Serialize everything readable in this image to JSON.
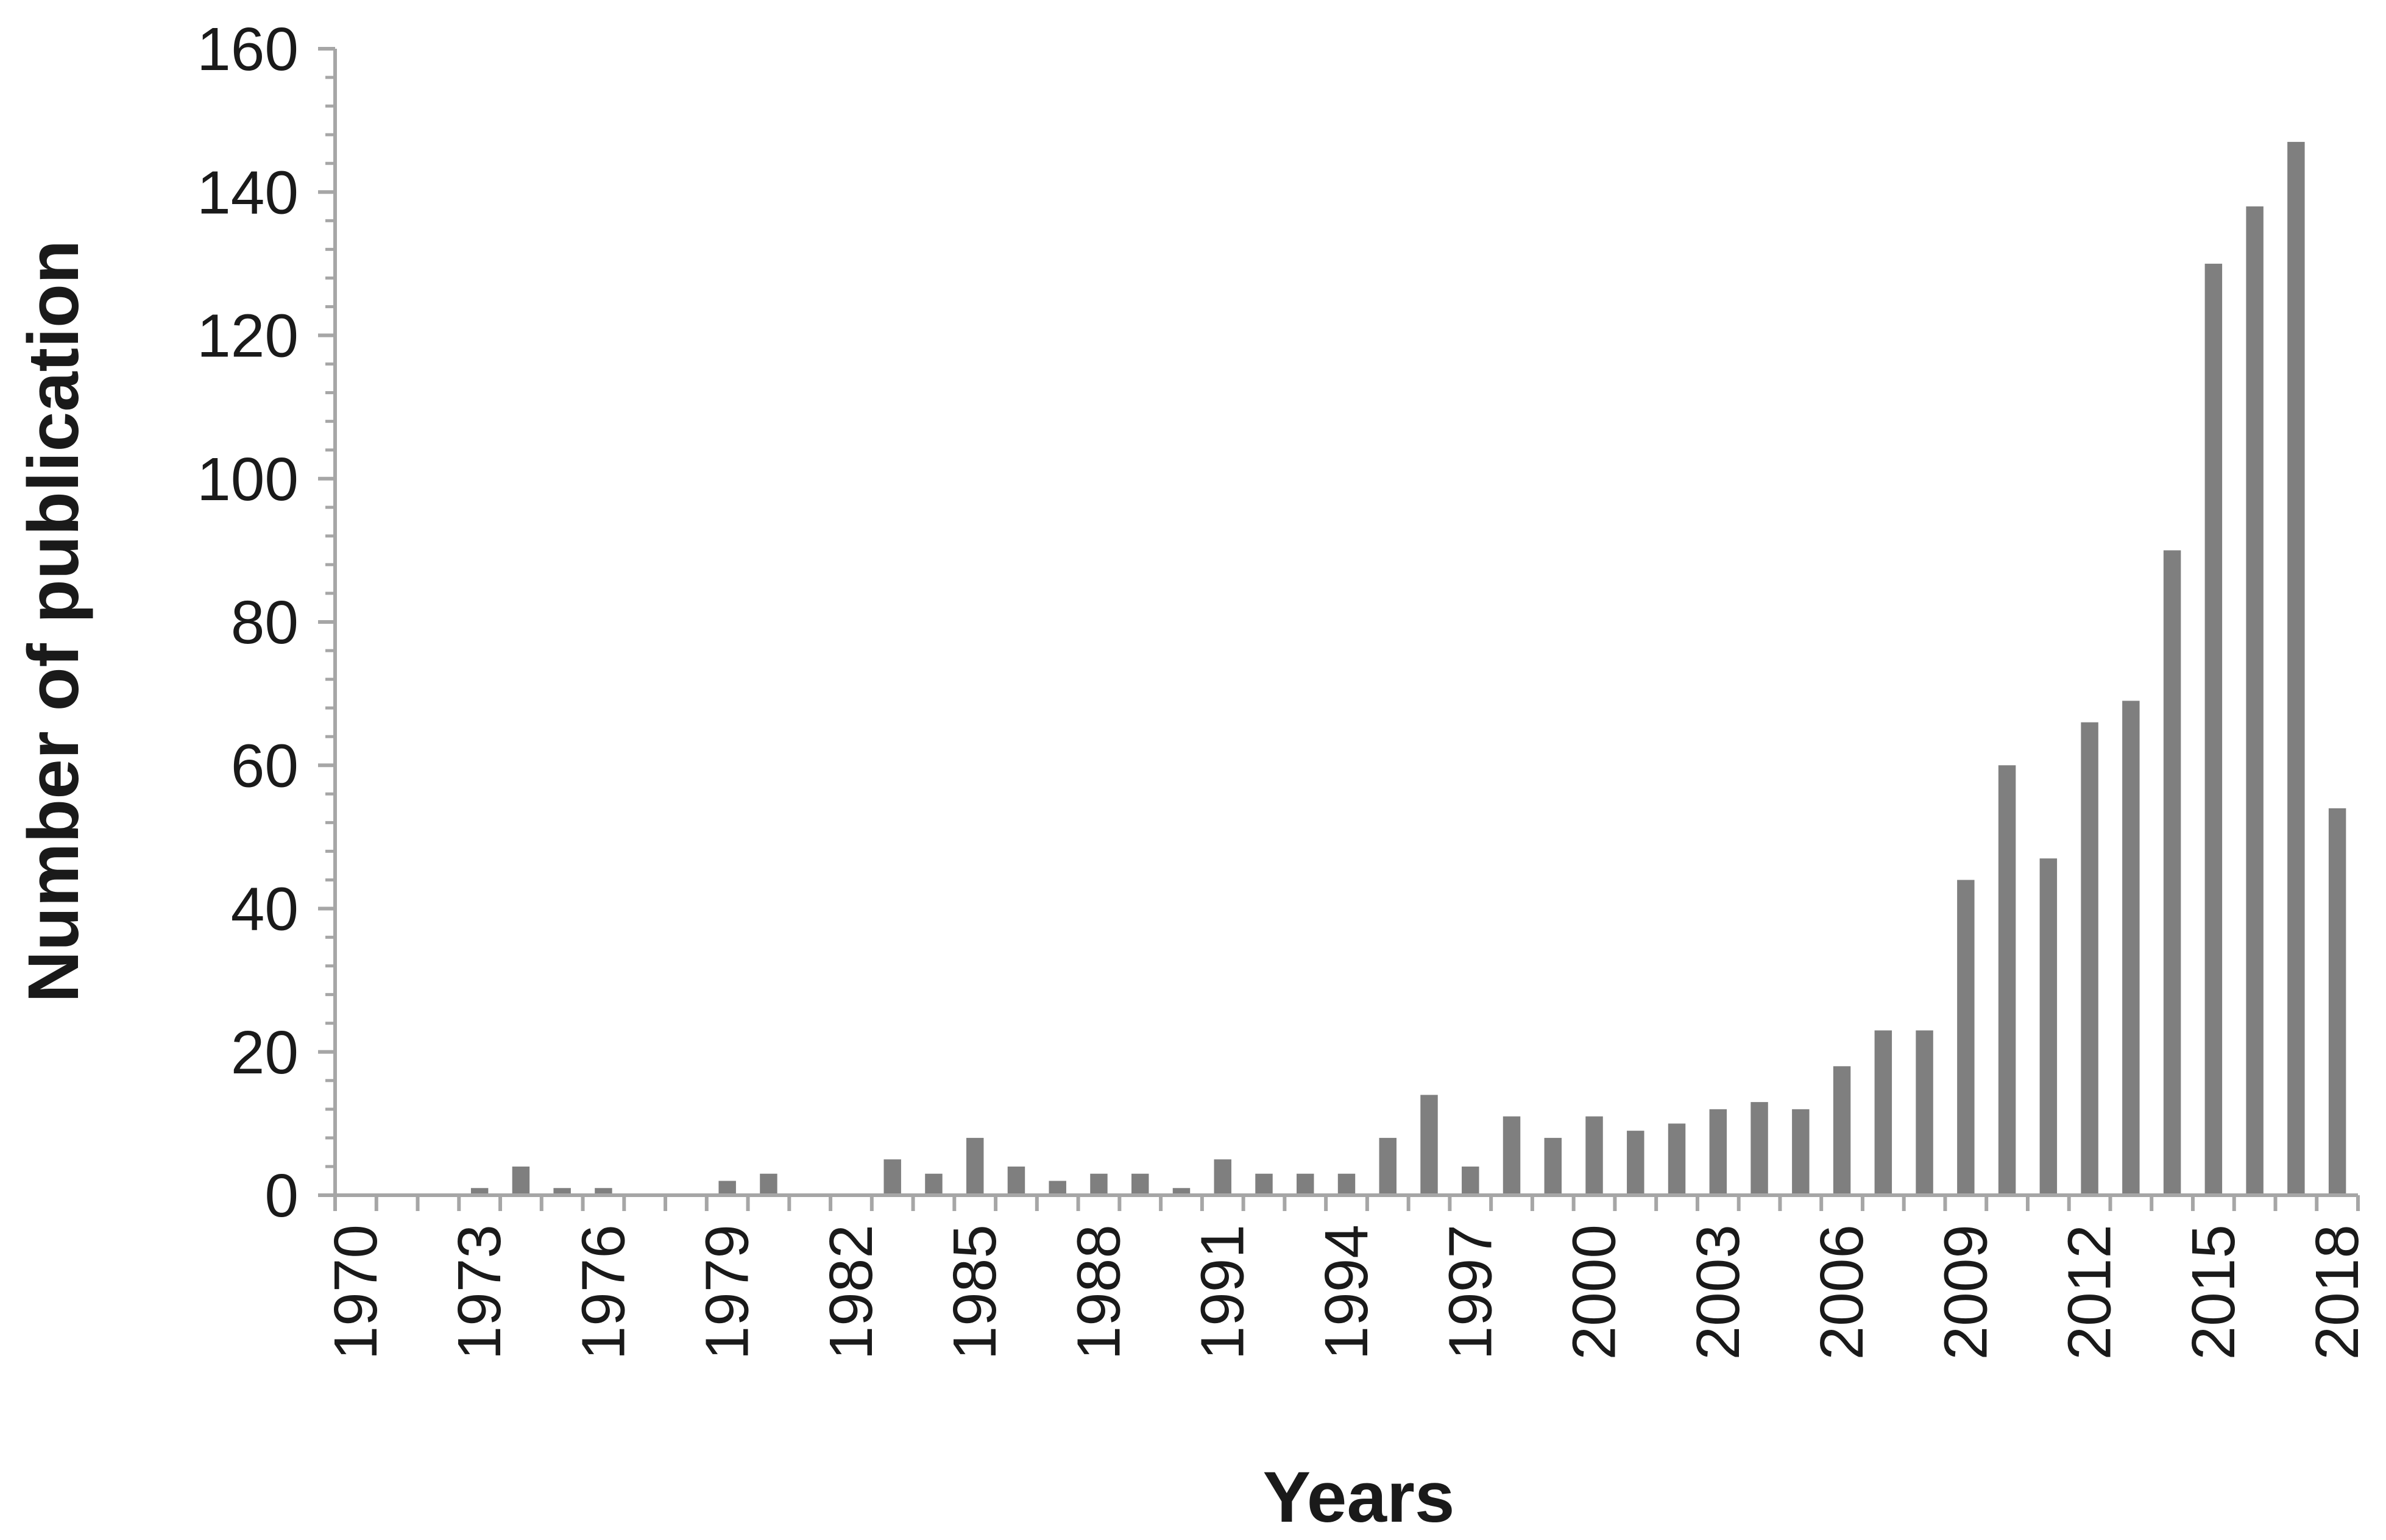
{
  "chart_data": {
    "type": "bar",
    "title": "",
    "xlabel": "Years",
    "ylabel": "Number of publication",
    "ylim": [
      0,
      160
    ],
    "yticks": [
      "0",
      "20",
      "40",
      "60",
      "80",
      "100",
      "120",
      "140",
      "160"
    ],
    "xtick_labels": [
      "1970",
      "1973",
      "1976",
      "1979",
      "1982",
      "1985",
      "1988",
      "1991",
      "1994",
      "1997",
      "2000",
      "2003",
      "2006",
      "2009",
      "2012",
      "2015",
      "2018"
    ],
    "bar_color": "#7f7f7f",
    "grid": false,
    "legend": "none",
    "categories": [
      1970,
      1971,
      1972,
      1973,
      1974,
      1975,
      1976,
      1977,
      1978,
      1979,
      1980,
      1981,
      1982,
      1983,
      1984,
      1985,
      1986,
      1987,
      1988,
      1989,
      1990,
      1991,
      1992,
      1993,
      1994,
      1995,
      1996,
      1997,
      1998,
      1999,
      2000,
      2001,
      2002,
      2003,
      2004,
      2005,
      2006,
      2007,
      2008,
      2009,
      2010,
      2011,
      2012,
      2013,
      2014,
      2015,
      2016,
      2017,
      2018
    ],
    "values": [
      0,
      0,
      0,
      1,
      4,
      1,
      1,
      0,
      0,
      2,
      3,
      0,
      0,
      5,
      3,
      8,
      4,
      2,
      3,
      3,
      1,
      5,
      3,
      3,
      3,
      8,
      14,
      4,
      11,
      8,
      11,
      9,
      10,
      12,
      13,
      12,
      18,
      23,
      23,
      44,
      60,
      47,
      66,
      69,
      90,
      130,
      138,
      147,
      54
    ]
  }
}
